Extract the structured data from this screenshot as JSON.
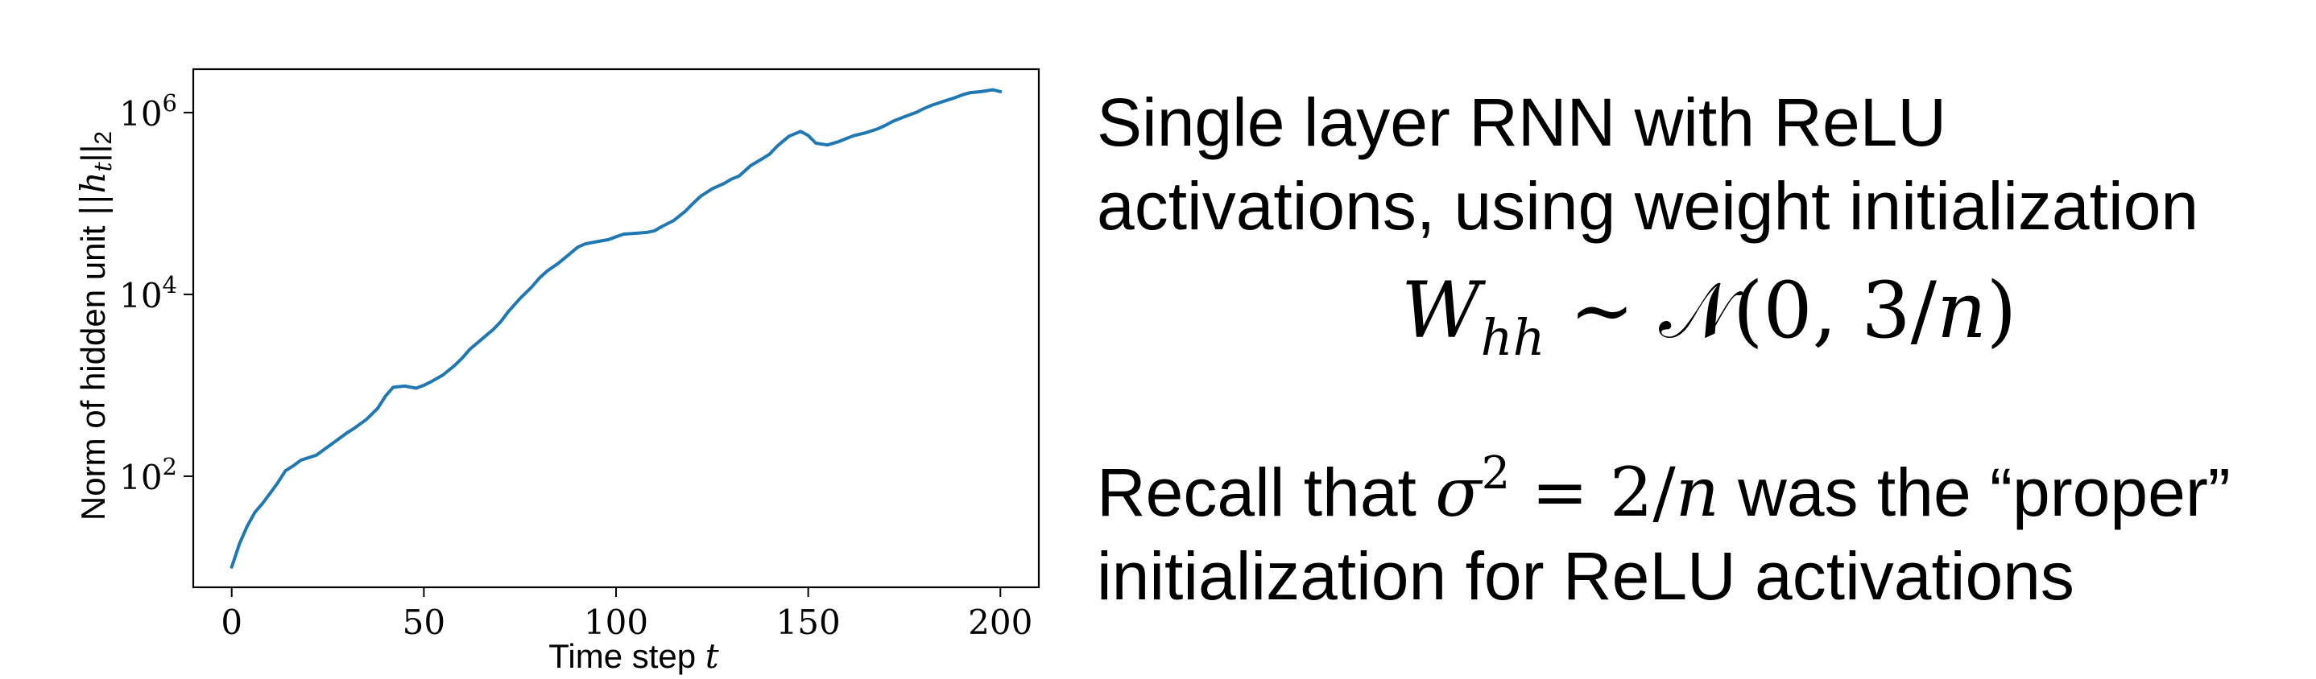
{
  "chart_data": {
    "type": "line",
    "xlabel": "Time step t",
    "ylabel": "Norm of hidden unit ||h_t||_2",
    "xlim": [
      -10,
      210
    ],
    "ylim": [
      6,
      3000000
    ],
    "y_scale": "log",
    "grid": false,
    "x_ticks": [
      0,
      50,
      100,
      150,
      200
    ],
    "x_tick_labels": [
      "0",
      "50",
      "100",
      "150",
      "200"
    ],
    "y_ticks": [
      100,
      10000,
      1000000
    ],
    "y_tick_labels": [
      "10^2",
      "10^4",
      "10^6"
    ],
    "series": [
      {
        "color": "#1f77b4",
        "x": [
          0,
          2,
          4,
          6,
          8,
          10,
          12,
          14,
          16,
          18,
          20,
          22,
          25,
          28,
          30,
          32,
          35,
          38,
          40,
          42,
          45,
          48,
          50,
          52,
          55,
          58,
          60,
          62,
          65,
          68,
          70,
          72,
          75,
          78,
          80,
          82,
          85,
          88,
          90,
          92,
          95,
          98,
          100,
          102,
          105,
          108,
          110,
          112,
          115,
          118,
          120,
          122,
          125,
          128,
          130,
          132,
          135,
          138,
          140,
          142,
          145,
          148,
          150,
          152,
          155,
          158,
          160,
          162,
          165,
          168,
          170,
          172,
          175,
          178,
          180,
          182,
          185,
          188,
          190,
          192,
          195,
          198,
          200
        ],
        "y": [
          10,
          18,
          28,
          40,
          50,
          65,
          85,
          115,
          130,
          150,
          160,
          170,
          210,
          260,
          300,
          340,
          420,
          560,
          760,
          950,
          980,
          930,
          1000,
          1100,
          1300,
          1650,
          2000,
          2500,
          3200,
          4100,
          5000,
          6500,
          9000,
          12000,
          15000,
          18000,
          22000,
          28000,
          33000,
          36000,
          38000,
          40000,
          43000,
          46000,
          47000,
          48000,
          50000,
          56000,
          65000,
          82000,
          100000,
          120000,
          145000,
          165000,
          185000,
          200000,
          260000,
          310000,
          350000,
          430000,
          550000,
          620000,
          560000,
          460000,
          440000,
          480000,
          520000,
          560000,
          600000,
          660000,
          720000,
          800000,
          900000,
          1000000,
          1100000,
          1200000,
          1320000,
          1450000,
          1560000,
          1650000,
          1700000,
          1780000,
          1700000
        ]
      }
    ]
  },
  "text": {
    "para1_line1": "Single layer RNN with ReLU",
    "para1_line2": "activations, using weight initialization",
    "formula_W": "W",
    "formula_sub": "hh",
    "formula_sim": " ∼ ",
    "formula_N": "𝒩",
    "formula_args": "(0, 3/",
    "formula_n": "n",
    "formula_close": ")",
    "para2_pre": "Recall that ",
    "para2_sigma": "σ",
    "para2_sup": "2",
    "para2_eq": " = 2/",
    "para2_n": "n",
    "para2_post": " was the “proper”",
    "para2_line2": "initialization for ReLU activations"
  }
}
